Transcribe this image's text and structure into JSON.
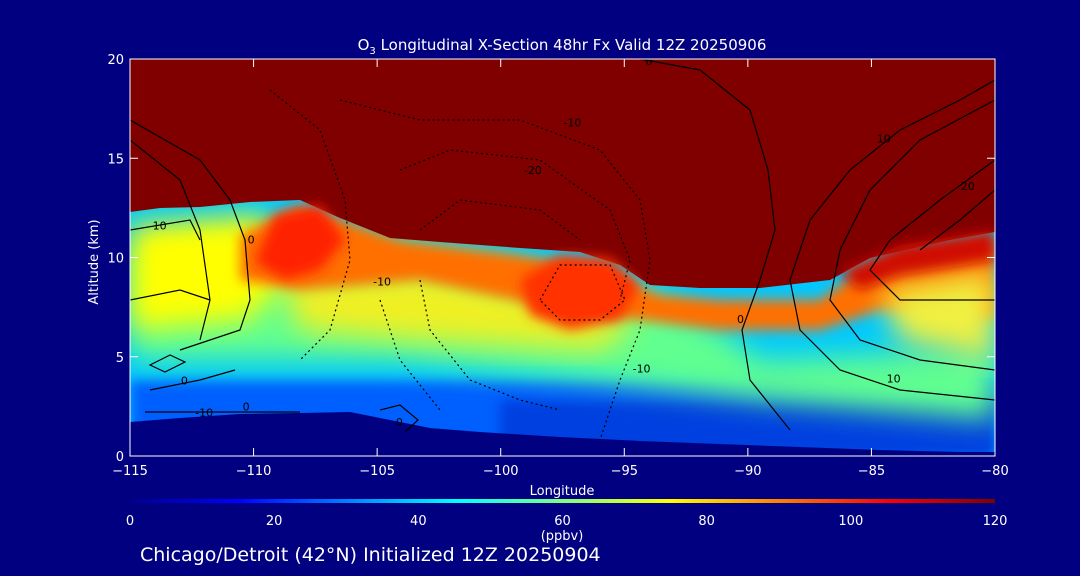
{
  "chart_data": {
    "type": "heatmap",
    "title": "O₃ Longitudinal X-Section 48hr  Fx Valid 12Z 20250906",
    "title_main": "O",
    "title_sub": "3",
    "title_rest": " Longitudinal X-Section 48hr  Fx Valid 12Z 20250906",
    "xlabel": "Longitude",
    "ylabel": "Altitude (km)",
    "xlim": [
      -115,
      -80
    ],
    "ylim": [
      0,
      20
    ],
    "x_ticks": [
      -115,
      -110,
      -105,
      -100,
      -95,
      -90,
      -85,
      -80
    ],
    "x_tick_labels": [
      "−115",
      "−110",
      "−105",
      "−100",
      "−95",
      "−90",
      "−85",
      "−80"
    ],
    "y_ticks": [
      0,
      5,
      10,
      15,
      20
    ],
    "y_tick_labels": [
      "0",
      "5",
      "10",
      "15",
      "20"
    ],
    "colorbar": {
      "label": "(ppbv)",
      "range": [
        0,
        120
      ],
      "ticks": [
        0,
        20,
        40,
        60,
        80,
        100,
        120
      ],
      "tick_labels": [
        "0",
        "20",
        "40",
        "60",
        "80",
        "100",
        "120"
      ],
      "colormap": [
        "#00008b",
        "#0000ff",
        "#0080ff",
        "#00ffff",
        "#80ff80",
        "#ffff00",
        "#ff8000",
        "#ff0000",
        "#800000"
      ]
    },
    "contour_labels": [
      {
        "text": "10",
        "lon": -113.8,
        "alt": 11.4
      },
      {
        "text": "0",
        "lon": -110.1,
        "alt": 10.7
      },
      {
        "text": "0",
        "lon": -112.8,
        "alt": 3.6
      },
      {
        "text": "-10",
        "lon": -112.0,
        "alt": 2.0
      },
      {
        "text": "0",
        "lon": -110.3,
        "alt": 2.3
      },
      {
        "text": "0",
        "lon": -104.1,
        "alt": 1.5
      },
      {
        "text": "-10",
        "lon": -104.8,
        "alt": 8.6
      },
      {
        "text": "-10",
        "lon": -97.1,
        "alt": 16.6
      },
      {
        "text": "-20",
        "lon": -98.7,
        "alt": 14.2
      },
      {
        "text": "0",
        "lon": -94.0,
        "alt": 19.7
      },
      {
        "text": "-10",
        "lon": -94.3,
        "alt": 4.2
      },
      {
        "text": "0",
        "lon": -90.3,
        "alt": 6.7
      },
      {
        "text": "10",
        "lon": -84.1,
        "alt": 3.7
      },
      {
        "text": "10",
        "lon": -84.5,
        "alt": 15.8
      },
      {
        "text": "20",
        "lon": -81.1,
        "alt": 13.4
      }
    ]
  },
  "footer": {
    "caption": "Chicago/Detroit (42°N) Initialized 12Z 20250904"
  }
}
